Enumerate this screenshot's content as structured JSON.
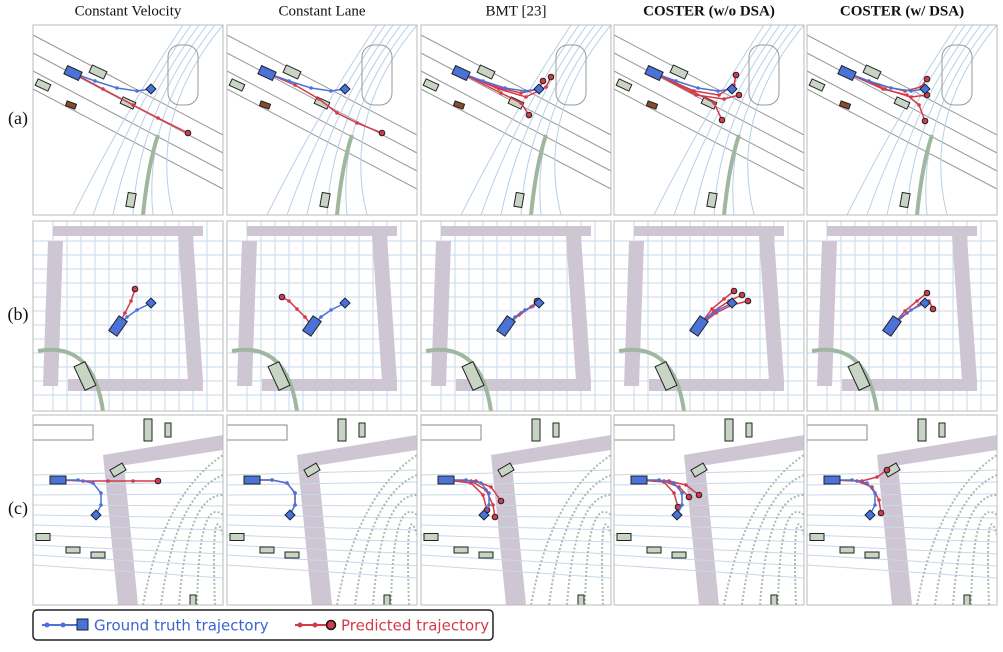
{
  "columns": [
    "Constant Velocity",
    "Constant Lane",
    "BMT [23]",
    "COSTER (w/o DSA)",
    "COSTER (w/ DSA)"
  ],
  "rows": [
    "(a)",
    "(b)",
    "(c)"
  ],
  "legend": [
    "Ground truth trajectory",
    "Predicted trajectory"
  ]
}
